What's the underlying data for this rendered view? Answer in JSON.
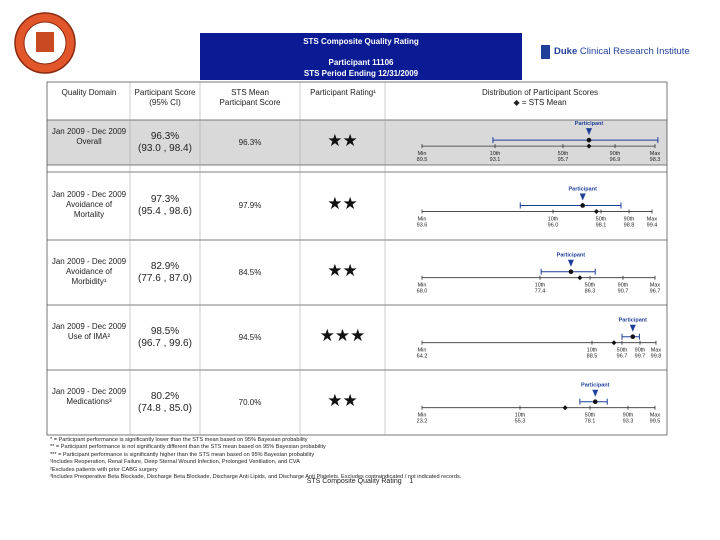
{
  "header": {
    "title": "STS Composite Quality Rating",
    "participant": "Participant 11106",
    "period": "STS Period Ending 12/31/2009",
    "brand": "Duke",
    "institute": "Clinical Research Institute"
  },
  "table": {
    "columns": [
      "Quality Domain",
      "Participant Score (95% CI)",
      "STS Mean Participant Score",
      "Participant Rating¹",
      "Distribution of Participant Scores",
      "◆ = STS Mean"
    ],
    "rows": [
      {
        "period": "Jan 2009 - Dec 2009",
        "domain": "Overall",
        "score": "96.3%",
        "ci": "(93.0 , 98.4)",
        "sts_mean": "96.3%",
        "rating": "★★",
        "distribution": [
          "89.5",
          "93.1",
          "95.7",
          "96.9",
          "98.3"
        ]
      },
      {
        "period": "Jan 2009 - Dec 2009",
        "domain": "Avoidance of Mortality",
        "score": "97.3%",
        "ci": "(95.4 , 98.6)",
        "sts_mean": "97.9%",
        "rating": "★★",
        "distribution": [
          "93.6",
          "96.0",
          "98.1",
          "98.8",
          "99.4"
        ]
      },
      {
        "period": "Jan 2009 - Dec 2009",
        "domain": "Avoidance of Morbidity¹",
        "score": "82.9%",
        "ci": "(77.6 , 87.0)",
        "sts_mean": "84.5%",
        "rating": "★★",
        "distribution": [
          "68.0",
          "77.4",
          "86.3",
          "90.7",
          "96.7"
        ]
      },
      {
        "period": "Jan 2009 - Dec 2009",
        "domain": "Use of IMA²",
        "score": "98.5%",
        "ci": "(96.7 , 99.6)",
        "sts_mean": "94.5%",
        "rating": "★★★",
        "distribution": [
          "64.2",
          "88.5",
          "96.7",
          "99.7",
          "99.8"
        ]
      },
      {
        "period": "Jan 2009 - Dec 2009",
        "domain": "Medications³",
        "score": "80.2%",
        "ci": "(74.8 , 85.0)",
        "sts_mean": "70.0%",
        "rating": "★★",
        "distribution": [
          "23.2",
          "55.3",
          "78.1",
          "93.3",
          "99.5"
        ]
      }
    ]
  },
  "distribution_labels": [
    "Min",
    "10th",
    "50th",
    "90th",
    "Max"
  ],
  "participant_label": "Participant",
  "footnotes": [
    "* = Participant performance is significantly lower than the STS mean based on 95% Bayesian probability",
    "** = Participant performance is not significantly different than the STS mean based on 95% Bayesian probability",
    "*** = Participant performance is significantly higher than the STS mean based on 95% Bayesian probability",
    "¹Includes Reoperation, Renal Failure, Deep Sternal Wound Infection, Prolonged Ventilation, and CVA",
    "²Excludes patients with prior CABG surgery",
    "³Includes Preoperative Beta Blockade, Discharge Beta Blockade, Discharge Anti Lipids, and Discharge Anti Platelets. Excludes contraindicated / not indicated records."
  ],
  "footer": {
    "title": "STS Composite Quality Rating",
    "page": "1"
  }
}
